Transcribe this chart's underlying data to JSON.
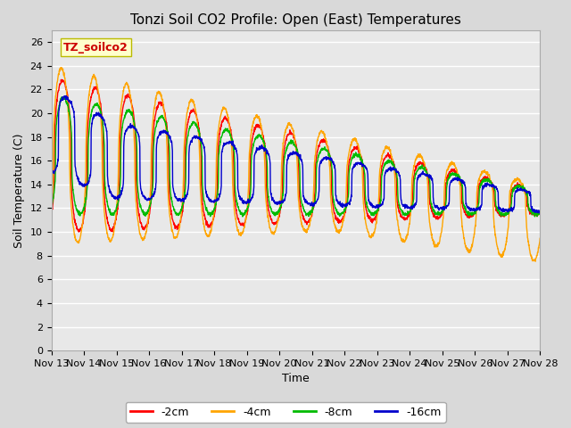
{
  "title": "Tonzi Soil CO2 Profile: Open (East) Temperatures",
  "xlabel": "Time",
  "ylabel": "Soil Temperature (C)",
  "ylim": [
    0,
    27
  ],
  "yticks": [
    0,
    2,
    4,
    6,
    8,
    10,
    12,
    14,
    16,
    18,
    20,
    22,
    24,
    26
  ],
  "x_start_day": 13,
  "x_end_day": 28,
  "xtick_days": [
    13,
    14,
    15,
    16,
    17,
    18,
    19,
    20,
    21,
    22,
    23,
    24,
    25,
    26,
    27,
    28
  ],
  "colors": {
    "-2cm": "#ff0000",
    "-4cm": "#ffa500",
    "-8cm": "#00bb00",
    "-16cm": "#0000cc"
  },
  "legend_labels": [
    "-2cm",
    "-4cm",
    "-8cm",
    "-16cm"
  ],
  "watermark_text": "TZ_soilco2",
  "watermark_bg": "#ffffcc",
  "watermark_fg": "#cc0000",
  "bg_color": "#d9d9d9",
  "plot_bg_color": "#e8e8e8",
  "grid_color": "#ffffff",
  "linewidth": 1.0,
  "figwidth": 6.4,
  "figheight": 4.8,
  "dpi": 100
}
